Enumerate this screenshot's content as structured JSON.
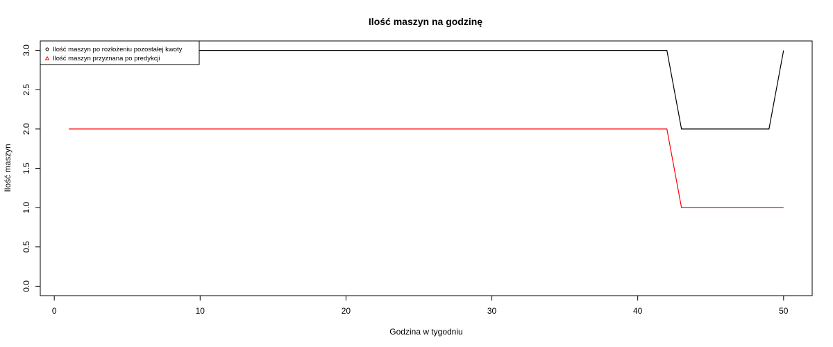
{
  "chart_data": {
    "type": "line",
    "title": "Ilość maszyn na godzinę",
    "xlabel": "Godzina w tygodniu",
    "ylabel": "Ilość maszyn",
    "xlim": [
      -0.96,
      51.96
    ],
    "ylim": [
      -0.12,
      3.12
    ],
    "xticks": [
      0,
      10,
      20,
      30,
      40,
      50
    ],
    "xtick_labels": [
      "0",
      "10",
      "20",
      "30",
      "40",
      "50"
    ],
    "yticks": [
      0,
      0.5,
      1,
      1.5,
      2,
      2.5,
      3
    ],
    "ytick_labels": [
      "0.0",
      "0.5",
      "1.0",
      "1.5",
      "2.0",
      "2.5",
      "3.0"
    ],
    "grid": false,
    "legend_position": "top-left",
    "series": [
      {
        "name": "Ilość maszyn po rozłożeniu pozostałej kwoty",
        "color": "#000000",
        "marker": "circle",
        "x": [
          1,
          42,
          43,
          49,
          50
        ],
        "y": [
          3,
          3,
          2,
          2,
          3
        ]
      },
      {
        "name": "Ilość maszyn przyznana po predykcji",
        "color": "#ff0000",
        "marker": "triangle",
        "x": [
          1,
          42,
          43,
          50
        ],
        "y": [
          2,
          2,
          1,
          1
        ]
      }
    ]
  }
}
